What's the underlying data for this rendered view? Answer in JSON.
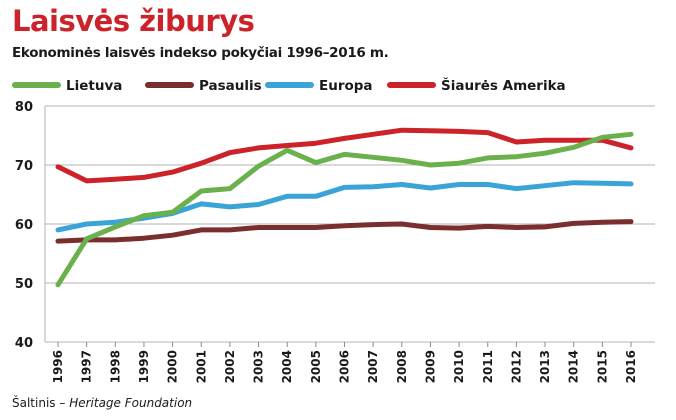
{
  "header": {
    "title": "Laisvės žiburys",
    "subtitle": "Ekonominės laisvės indekso pokyčiai 1996–2016 m."
  },
  "footer": {
    "source_label": "Šaltinis –",
    "source_org": "Heritage Foundation"
  },
  "chart_data": {
    "type": "line",
    "title": "Laisvės žiburys",
    "subtitle": "Ekonominės laisvės indekso pokyčiai 1996–2016 m.",
    "xlabel": "",
    "ylabel": "",
    "ylim": [
      40,
      80
    ],
    "yticks": [
      40,
      50,
      60,
      70,
      80
    ],
    "grid": true,
    "legend_position": "top",
    "categories": [
      "1996",
      "1997",
      "1998",
      "1999",
      "2000",
      "2001",
      "2002",
      "2003",
      "2004",
      "2005",
      "2006",
      "2007",
      "2008",
      "2009",
      "2010",
      "2011",
      "2012",
      "2013",
      "2014",
      "2015",
      "2016"
    ],
    "series": [
      {
        "name": "Lietuva",
        "color": "#6ab04c",
        "values": [
          49.7,
          57.5,
          59.5,
          61.4,
          62.0,
          65.6,
          66.0,
          69.8,
          72.5,
          70.4,
          71.8,
          71.3,
          70.8,
          70.0,
          70.3,
          71.2,
          71.4,
          72.0,
          73.0,
          74.7,
          75.2
        ]
      },
      {
        "name": "Pasaulis",
        "color": "#7a2e2e",
        "values": [
          57.1,
          57.3,
          57.3,
          57.6,
          58.1,
          59.0,
          59.0,
          59.4,
          59.4,
          59.4,
          59.7,
          59.9,
          60.0,
          59.4,
          59.3,
          59.6,
          59.4,
          59.5,
          60.1,
          60.3,
          60.4
        ]
      },
      {
        "name": "Europa",
        "color": "#3aa3d8",
        "values": [
          59.0,
          60.0,
          60.3,
          61.0,
          61.8,
          63.4,
          62.9,
          63.3,
          64.7,
          64.7,
          66.2,
          66.3,
          66.7,
          66.1,
          66.7,
          66.7,
          66.0,
          66.5,
          67.0,
          66.9,
          66.8
        ]
      },
      {
        "name": "Šiaurės Amerika",
        "color": "#cc2229",
        "values": [
          69.7,
          67.3,
          67.6,
          67.9,
          68.8,
          70.3,
          72.1,
          72.9,
          73.3,
          73.7,
          74.5,
          75.2,
          75.9,
          75.8,
          75.7,
          75.5,
          73.9,
          74.2,
          74.2,
          74.2,
          72.9
        ]
      }
    ]
  }
}
